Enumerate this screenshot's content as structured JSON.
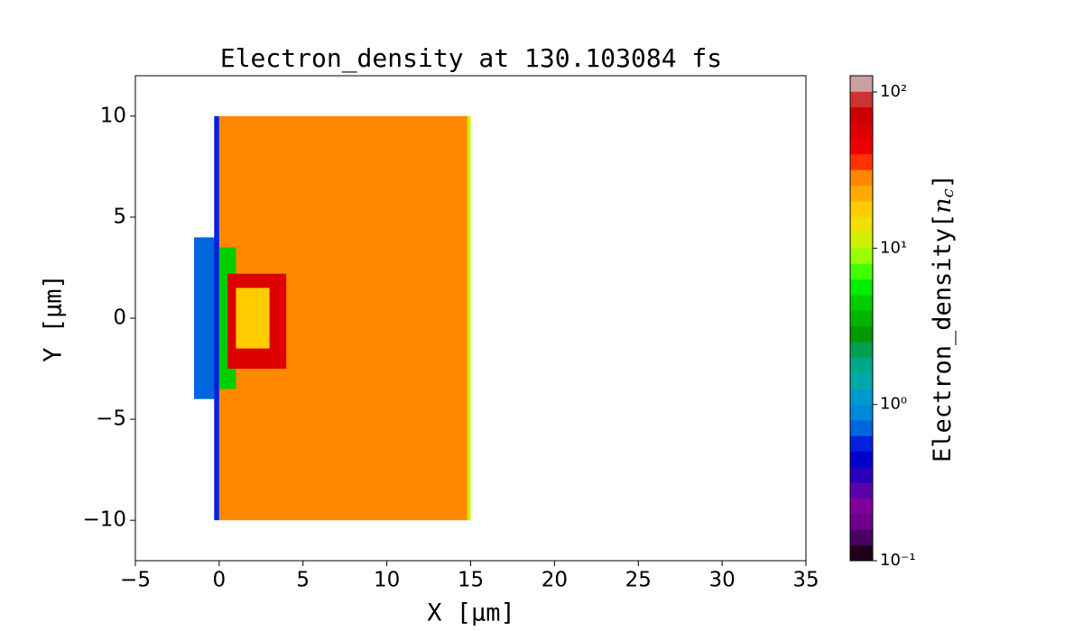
{
  "chart_data": {
    "type": "heatmap",
    "title": "Electron_density at 130.103084 fs",
    "x_label": "X [μm]",
    "y_label": "Y [μm]",
    "colorbar_label": [
      "Electron_density[",
      "n",
      "c",
      "]"
    ],
    "xlim": [
      -5,
      35
    ],
    "ylim": [
      -12,
      12
    ],
    "xticks": [
      {
        "value": -5,
        "label": "−5"
      },
      0,
      5,
      10,
      15,
      20,
      25,
      30,
      35
    ],
    "yticks": [
      {
        "value": -10,
        "label": "−10"
      },
      {
        "value": -5,
        "label": "−5"
      },
      0,
      5,
      10
    ],
    "color_scale": "log",
    "zlim": [
      0.1,
      127
    ],
    "zticks": [
      {
        "value": 0.1,
        "label": "10⁻¹"
      },
      {
        "value": 1,
        "label": "10⁰"
      },
      {
        "value": 10,
        "label": "10¹"
      },
      {
        "value": 100,
        "label": "10²"
      }
    ],
    "colormap": [
      "#1e0018",
      "#4a0060",
      "#6c008a",
      "#80009c",
      "#5a00aa",
      "#2a00bb",
      "#0000cc",
      "#0022dd",
      "#0066dd",
      "#0088dd",
      "#0099cc",
      "#00aaaa",
      "#00a88a",
      "#00a050",
      "#009900",
      "#00b400",
      "#00cc00",
      "#00ee00",
      "#44ff00",
      "#99ff00",
      "#ccf000",
      "#eee000",
      "#ffcc00",
      "#ffaa00",
      "#ff8800",
      "#ff3300",
      "#ee0000",
      "#dd0000",
      "#cc0000",
      "#cc3333",
      "#cca0a0"
    ],
    "regions": [
      {
        "x": [
          -1.5,
          0
        ],
        "y": [
          -4,
          4
        ],
        "value": 0.7
      },
      {
        "x": [
          -0.3,
          0
        ],
        "y": [
          -10,
          10
        ],
        "value": 0.6
      },
      {
        "x": [
          0,
          15
        ],
        "y": [
          -10,
          10
        ],
        "value": 28
      },
      {
        "x": [
          14.8,
          15
        ],
        "y": [
          -10,
          10
        ],
        "value": 12
      },
      {
        "x": [
          0,
          1
        ],
        "y": [
          -3.5,
          3.5
        ],
        "value": 5
      },
      {
        "x": [
          0.5,
          4
        ],
        "y": [
          -2.5,
          2.2
        ],
        "value": 60
      },
      {
        "x": [
          1,
          3
        ],
        "y": [
          -1.5,
          1.5
        ],
        "value": 20
      }
    ]
  }
}
